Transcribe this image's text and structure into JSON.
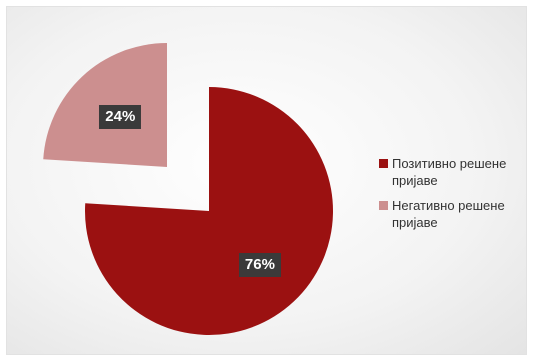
{
  "chart_data": {
    "type": "pie",
    "exploded": true,
    "categories": [
      "Позитивно решене пријаве",
      "Негативно решене пријаве"
    ],
    "values": [
      76,
      24
    ],
    "data_labels": [
      "76%",
      "24%"
    ],
    "colors": [
      "#9b1111",
      "#cc8f8f"
    ],
    "legend_position": "right",
    "title": ""
  }
}
